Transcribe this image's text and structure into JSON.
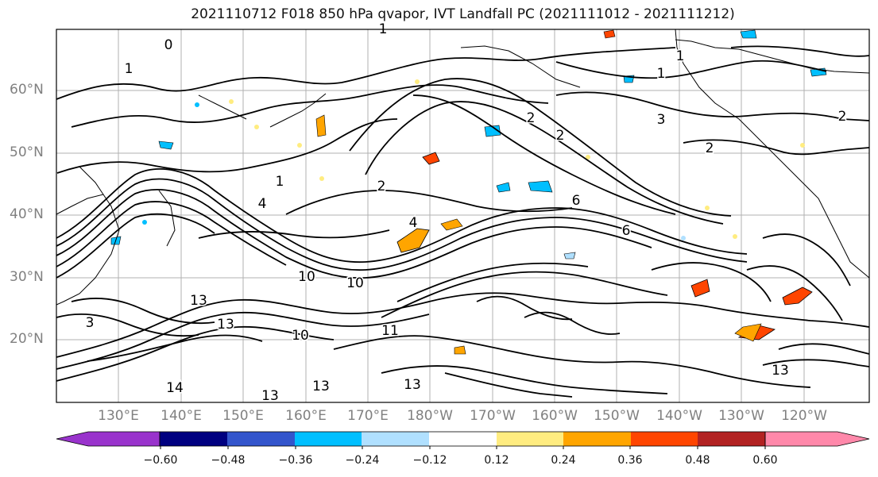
{
  "title": "2021110712 F018 850 hPa qvapor, IVT Landfall PC (2021111012 - 2021111212)",
  "map": {
    "lat_labels": [
      "60°N",
      "50°N",
      "40°N",
      "30°N",
      "20°N"
    ],
    "lon_labels": [
      "130°E",
      "140°E",
      "150°E",
      "160°E",
      "170°E",
      "180°W",
      "170°W",
      "160°W",
      "150°W",
      "140°W",
      "130°W",
      "120°W"
    ],
    "contour_labels": [
      "1",
      "0",
      "1",
      "1",
      "1",
      "2",
      "3",
      "2",
      "2",
      "2",
      "1",
      "2",
      "4",
      "4",
      "6",
      "6",
      "10",
      "10",
      "13",
      "13",
      "10",
      "11",
      "13",
      "13",
      "13",
      "14",
      "13",
      "3"
    ],
    "colors": {
      "contour": "#000000",
      "coast": "#000000",
      "grid": "#b0b0b0"
    }
  },
  "colorbar": {
    "colors": [
      "#9933cc",
      "#000080",
      "#3355cc",
      "#00bfff",
      "#b0e0ff",
      "#ffffff",
      "#ffec80",
      "#ffa500",
      "#ff4500",
      "#b22222",
      "#ff88aa"
    ],
    "ticks": [
      "−0.60",
      "−0.48",
      "−0.36",
      "−0.24",
      "−0.12",
      "0.12",
      "0.24",
      "0.36",
      "0.48",
      "0.60"
    ]
  }
}
